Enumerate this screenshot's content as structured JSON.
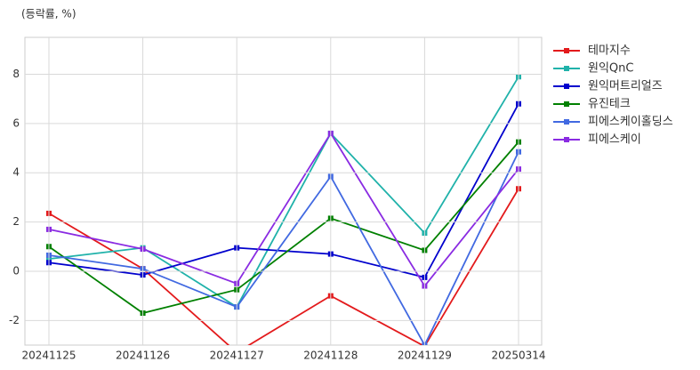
{
  "chart_data": {
    "type": "line",
    "y_label": "(등락률, %)",
    "categories": [
      "20241125",
      "20241126",
      "20241127",
      "20241128",
      "20241129",
      "20250314"
    ],
    "series": [
      {
        "name": "테마지수",
        "color": "#e31a1c",
        "values": [
          2.35,
          0.1,
          -3.3,
          -1.0,
          -3.05,
          3.35
        ]
      },
      {
        "name": "원익QnC",
        "color": "#20b2aa",
        "values": [
          0.5,
          0.95,
          -1.45,
          5.6,
          1.55,
          7.9
        ]
      },
      {
        "name": "원익머트리얼즈",
        "color": "#0000cd",
        "values": [
          0.35,
          -0.15,
          0.95,
          0.7,
          -0.25,
          6.8
        ]
      },
      {
        "name": "유진테크",
        "color": "#008000",
        "values": [
          1.0,
          -1.7,
          -0.75,
          2.15,
          0.85,
          5.25
        ]
      },
      {
        "name": "피에스케이홀딩스",
        "color": "#4169e1",
        "values": [
          0.65,
          0.1,
          -1.45,
          3.85,
          -3.0,
          4.85
        ]
      },
      {
        "name": "피에스케이",
        "color": "#8a2be2",
        "values": [
          1.7,
          0.9,
          -0.5,
          5.6,
          -0.6,
          4.15
        ]
      }
    ],
    "ylim": [
      -3,
      9.5
    ],
    "yticks": [
      -2,
      0,
      2,
      4,
      6,
      8
    ],
    "grid": true,
    "legend": "right"
  }
}
